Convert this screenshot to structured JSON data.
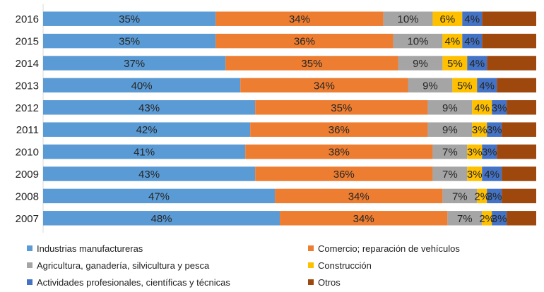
{
  "chart_data": {
    "type": "bar",
    "orientation": "horizontal",
    "stacked": true,
    "normalized_percent": true,
    "categories": [
      "2016",
      "2015",
      "2014",
      "2013",
      "2012",
      "2011",
      "2010",
      "2009",
      "2008",
      "2007"
    ],
    "series": [
      {
        "name": "Industrias manufactureras",
        "color": "#5b9bd5",
        "values": [
          35,
          35,
          37,
          40,
          43,
          42,
          41,
          43,
          47,
          48
        ],
        "labels": [
          "35%",
          "35%",
          "37%",
          "40%",
          "43%",
          "42%",
          "41%",
          "43%",
          "47%",
          "48%"
        ]
      },
      {
        "name": "Comercio; reparación de vehículos",
        "color": "#ed7d31",
        "values": [
          34,
          36,
          35,
          34,
          35,
          36,
          38,
          36,
          34,
          34
        ],
        "labels": [
          "34%",
          "36%",
          "35%",
          "34%",
          "35%",
          "36%",
          "38%",
          "36%",
          "34%",
          "34%"
        ]
      },
      {
        "name": "Agricultura, ganadería,  silvicultura y pesca",
        "color": "#a5a5a5",
        "values": [
          10,
          10,
          9,
          9,
          9,
          9,
          7,
          7,
          7,
          7
        ],
        "labels": [
          "10%",
          "10%",
          "9%",
          "9%",
          "9%",
          "9%",
          "7%",
          "7%",
          "7%",
          "7%"
        ]
      },
      {
        "name": "Construcción",
        "color": "#ffc000",
        "values": [
          6,
          4,
          5,
          5,
          4,
          3,
          3,
          3,
          2,
          2
        ],
        "labels": [
          "6%",
          "4%",
          "5%",
          "5%",
          "4%",
          "3%",
          "3%",
          "3%",
          "2%",
          "2%"
        ]
      },
      {
        "name": "Actividades profesionales, científicas y técnicas",
        "color": "#4472c4",
        "values": [
          4,
          4,
          4,
          4,
          3,
          3,
          3,
          4,
          3,
          3
        ],
        "labels": [
          "4%",
          "4%",
          "4%",
          "4%",
          "3%",
          "3%",
          "3%",
          "4%",
          "3%",
          "3%"
        ]
      },
      {
        "name": "Otros",
        "color": "#9e480e",
        "values": [
          11,
          11,
          10,
          8,
          6,
          7,
          8,
          7,
          7,
          6
        ],
        "labels": [
          "",
          "",
          "",
          "",
          "",
          "",
          "",
          "",
          "",
          ""
        ]
      }
    ],
    "xlim": [
      0,
      100
    ],
    "title": "",
    "xlabel": "",
    "ylabel": "",
    "legend_position": "bottom"
  }
}
